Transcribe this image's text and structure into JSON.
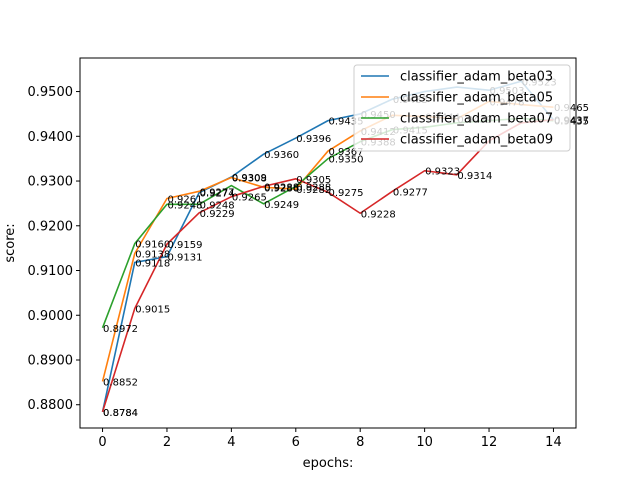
{
  "chart_data": {
    "type": "line",
    "xlabel": "epochs:",
    "ylabel": "score:",
    "xlim": [
      -0.7,
      14.7
    ],
    "ylim": [
      0.8748,
      0.9575
    ],
    "x_ticks": [
      0,
      2,
      4,
      6,
      8,
      10,
      12,
      14
    ],
    "x_tick_labels": [
      "0",
      "2",
      "4",
      "6",
      "8",
      "10",
      "12",
      "14"
    ],
    "y_ticks": [
      0.88,
      0.89,
      0.9,
      0.91,
      0.92,
      0.93,
      0.94,
      0.95
    ],
    "y_tick_labels": [
      "0.8800",
      "0.8900",
      "0.9000",
      "0.9100",
      "0.9200",
      "0.9300",
      "0.9400",
      "0.9500"
    ],
    "grid": false,
    "legend_position": "top-right",
    "series": [
      {
        "name": "classifier_adam_beta03",
        "color": "#1f77b4",
        "x": [
          0,
          1,
          2,
          3,
          4,
          5,
          6,
          7,
          8,
          9,
          10,
          11,
          12,
          13,
          14
        ],
        "y": [
          0.8784,
          0.9118,
          0.9131,
          0.9274,
          0.9309,
          0.936,
          0.9396,
          0.9435,
          0.945,
          0.9483,
          0.95,
          0.951,
          0.9503,
          0.9523,
          0.9437
        ],
        "labels": [
          "0.8784",
          "0.9118",
          "0.9131",
          "0.9274",
          "0.9309",
          "0.9360",
          "0.9396",
          "0.9435",
          "0.9450",
          "0.9483",
          "",
          "",
          "0.9503",
          "0.9523",
          "0.9437"
        ]
      },
      {
        "name": "classifier_adam_beta05",
        "color": "#ff7f0e",
        "x": [
          0,
          1,
          2,
          3,
          4,
          5,
          6,
          7,
          8,
          9,
          10,
          11,
          12,
          13,
          14
        ],
        "y": [
          0.8852,
          0.9138,
          0.9261,
          0.9277,
          0.9308,
          0.9286,
          0.9282,
          0.9367,
          0.9412,
          0.9447,
          0.9444,
          0.9439,
          0.9478,
          0.9471,
          0.9465
        ],
        "labels": [
          "0.8852",
          "0.9138",
          "0.9261",
          "0.9277",
          "0.9308",
          "0.9286",
          "0.9282",
          "0.9367",
          "0.9412",
          "",
          "0.9444",
          "0.9439",
          "0.9478",
          "",
          "0.9465"
        ]
      },
      {
        "name": "classifier_adam_beta07",
        "color": "#2ca02c",
        "x": [
          0,
          1,
          2,
          3,
          4,
          5,
          6,
          7,
          8,
          9,
          10,
          11,
          12,
          13,
          14
        ],
        "y": [
          0.8972,
          0.916,
          0.9248,
          0.9248,
          0.929,
          0.9249,
          0.9288,
          0.935,
          0.9388,
          0.9415,
          0.942,
          0.943,
          0.9435,
          0.944,
          0.9435
        ],
        "labels": [
          "0.8972",
          "0.9160",
          "0.9248",
          "0.9248",
          "",
          "0.9249",
          "0.9288",
          "0.9350",
          "0.9388",
          "0.9415",
          "",
          "",
          "",
          "",
          "0.9435"
        ]
      },
      {
        "name": "classifier_adam_beta09",
        "color": "#d62728",
        "x": [
          0,
          1,
          2,
          3,
          4,
          5,
          6,
          7,
          8,
          9,
          10,
          11,
          12,
          13,
          14
        ],
        "y": [
          0.8784,
          0.9015,
          0.9159,
          0.9229,
          0.9265,
          0.9288,
          0.9305,
          0.9275,
          0.9228,
          0.9277,
          0.9323,
          0.9314,
          0.939,
          0.943,
          0.9437
        ],
        "labels": [
          "0.8784",
          "0.9015",
          "0.9159",
          "0.9229",
          "0.9265",
          "0.9288",
          "0.9305",
          "0.9275",
          "0.9228",
          "0.9277",
          "0.9323",
          "0.9314",
          "",
          "",
          ""
        ]
      }
    ]
  }
}
